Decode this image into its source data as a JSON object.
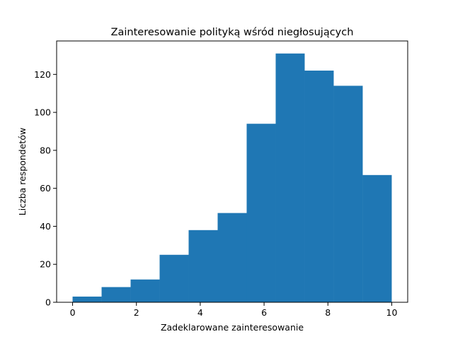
{
  "chart_data": {
    "type": "bar",
    "title": "Zainteresowanie polityką wśród niegłosujących",
    "xlabel": "Zadeklarowane zainteresowanie",
    "ylabel": "Liczba respondetów",
    "bin_edges": [
      0,
      0.9090909,
      1.8181818,
      2.7272727,
      3.6363636,
      4.5454545,
      5.4545455,
      6.3636364,
      7.2727273,
      8.1818182,
      9.0909091,
      10
    ],
    "values": [
      3,
      8,
      12,
      25,
      38,
      47,
      94,
      131,
      122,
      114,
      67
    ],
    "xlim": [
      -0.5,
      10.5
    ],
    "ylim": [
      0,
      137.6
    ],
    "xticks": [
      0,
      2,
      4,
      6,
      8,
      10
    ],
    "yticks": [
      0,
      20,
      40,
      60,
      80,
      100,
      120
    ],
    "bar_color": "#1f77b4",
    "grid": false,
    "legend": "none"
  }
}
